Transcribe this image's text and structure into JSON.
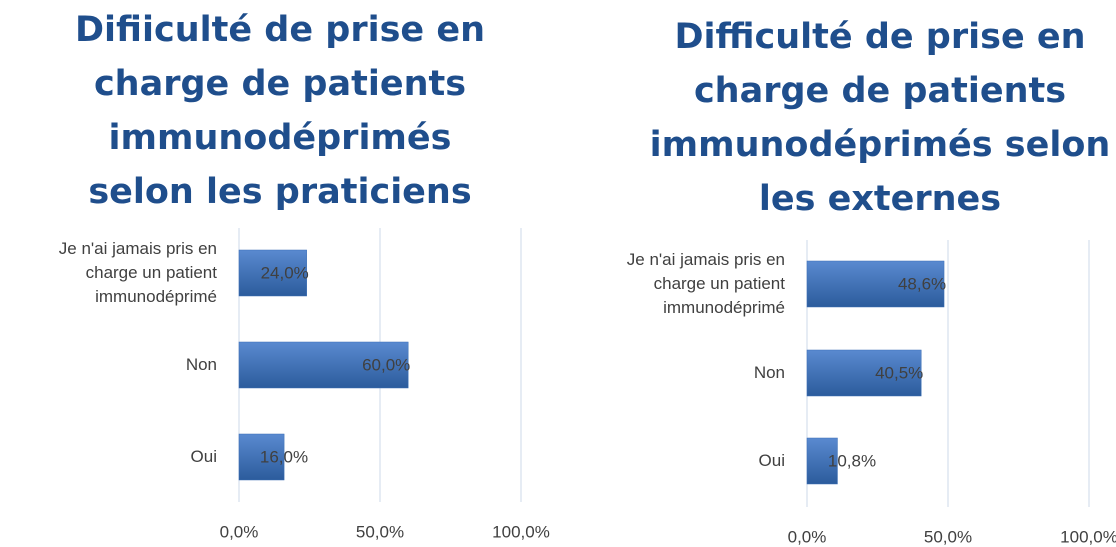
{
  "chart_data": [
    {
      "type": "barh",
      "title": "Difiiculté de prise en charge de patients immunodéprimés selon les praticiens",
      "categories": [
        "Je n'ai jamais pris en charge un patient immunodéprimé",
        "Non",
        "Oui"
      ],
      "values": [
        24.0,
        60.0,
        16.0
      ],
      "value_labels": [
        "24,0%",
        "60,0%",
        "16,0%"
      ],
      "color": "#3a6fb5",
      "xlim": [
        0,
        100
      ],
      "xticks": [
        {
          "value": 0,
          "label": "0,0%"
        },
        {
          "value": 50,
          "label": "50,0%"
        },
        {
          "value": 100,
          "label": "100,0%"
        }
      ],
      "grid": true
    },
    {
      "type": "barh",
      "title": "Difficulté de prise en charge de patients immunodéprimés selon les externes",
      "categories": [
        "Je n'ai jamais pris en charge un patient immunodéprimé",
        "Non",
        "Oui"
      ],
      "values": [
        48.6,
        40.5,
        10.8
      ],
      "value_labels": [
        "48,6%",
        "40,5%",
        "10,8%"
      ],
      "color": "#3a6fb5",
      "xlim": [
        0,
        100
      ],
      "xticks": [
        {
          "value": 0,
          "label": "0,0%"
        },
        {
          "value": 50,
          "label": "50,0%"
        },
        {
          "value": 100,
          "label": "100,0%"
        }
      ],
      "grid": true
    }
  ]
}
